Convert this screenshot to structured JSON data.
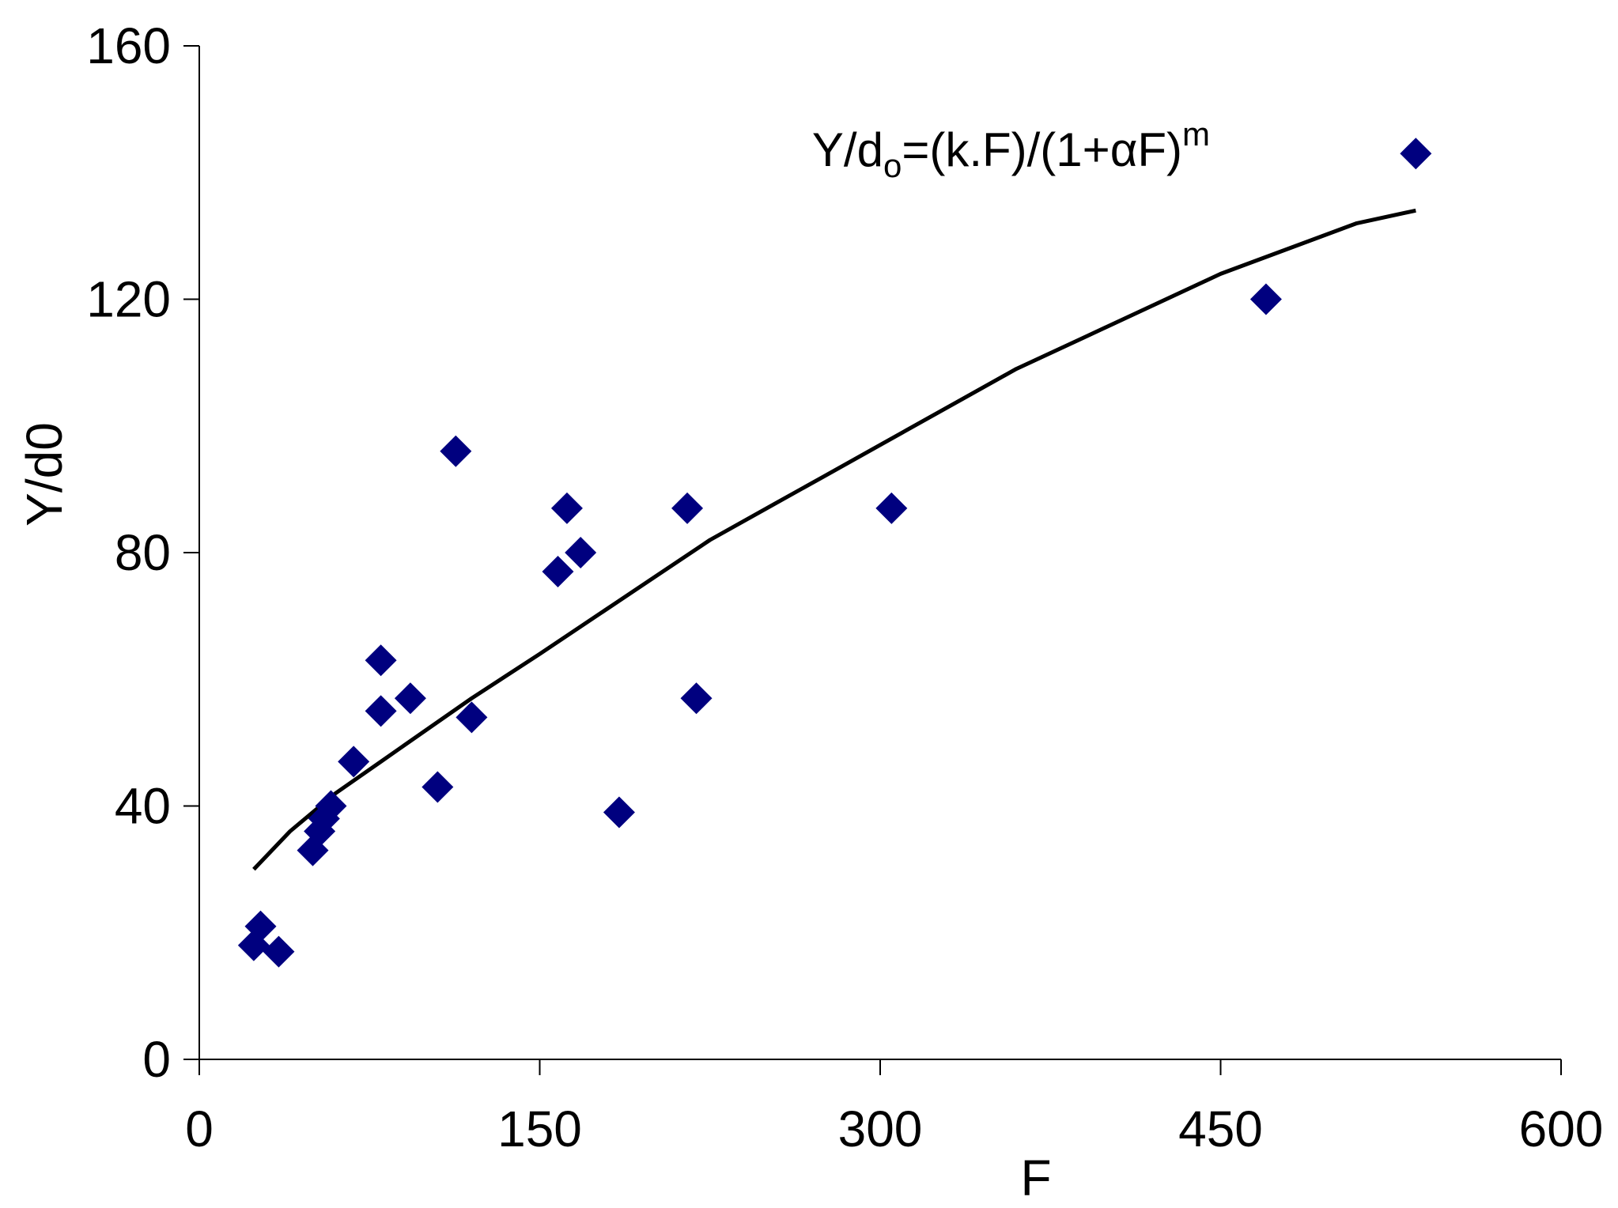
{
  "chart_data": {
    "type": "scatter",
    "title": "",
    "xlabel": "F",
    "ylabel": "Y/d0",
    "xlim": [
      0,
      600
    ],
    "ylim": [
      0,
      160
    ],
    "xticks": [
      0,
      150,
      300,
      450,
      600
    ],
    "yticks": [
      0,
      40,
      80,
      120,
      160
    ],
    "grid": false,
    "marker": "diamond",
    "marker_color": "#00007F",
    "line_color": "#000000",
    "annotation": {
      "text_main": "Y/d",
      "text_sub": "o",
      "text_rest": "=(k.F)/(1+αF)",
      "text_sup": "m",
      "anchor_x": 270,
      "anchor_y": 141
    },
    "points": [
      {
        "x": 24,
        "y": 18
      },
      {
        "x": 27,
        "y": 21
      },
      {
        "x": 35,
        "y": 17
      },
      {
        "x": 50,
        "y": 33
      },
      {
        "x": 53,
        "y": 36
      },
      {
        "x": 55,
        "y": 38
      },
      {
        "x": 58,
        "y": 40
      },
      {
        "x": 68,
        "y": 47
      },
      {
        "x": 80,
        "y": 55
      },
      {
        "x": 80,
        "y": 63
      },
      {
        "x": 93,
        "y": 57
      },
      {
        "x": 105,
        "y": 43
      },
      {
        "x": 113,
        "y": 96
      },
      {
        "x": 120,
        "y": 54
      },
      {
        "x": 158,
        "y": 77
      },
      {
        "x": 162,
        "y": 87
      },
      {
        "x": 168,
        "y": 80
      },
      {
        "x": 185,
        "y": 39
      },
      {
        "x": 215,
        "y": 87
      },
      {
        "x": 219,
        "y": 57
      },
      {
        "x": 305,
        "y": 87
      },
      {
        "x": 470,
        "y": 120
      },
      {
        "x": 536,
        "y": 143
      }
    ],
    "fit_line": {
      "x": [
        24,
        40,
        60,
        80,
        100,
        120,
        150,
        175,
        200,
        225,
        250,
        275,
        300,
        330,
        360,
        390,
        420,
        450,
        480,
        510,
        536
      ],
      "y": [
        30,
        36,
        42,
        47,
        52,
        57,
        64,
        70,
        76,
        82,
        87,
        92,
        97,
        103,
        109,
        114,
        119,
        124,
        128,
        132,
        134
      ]
    }
  }
}
